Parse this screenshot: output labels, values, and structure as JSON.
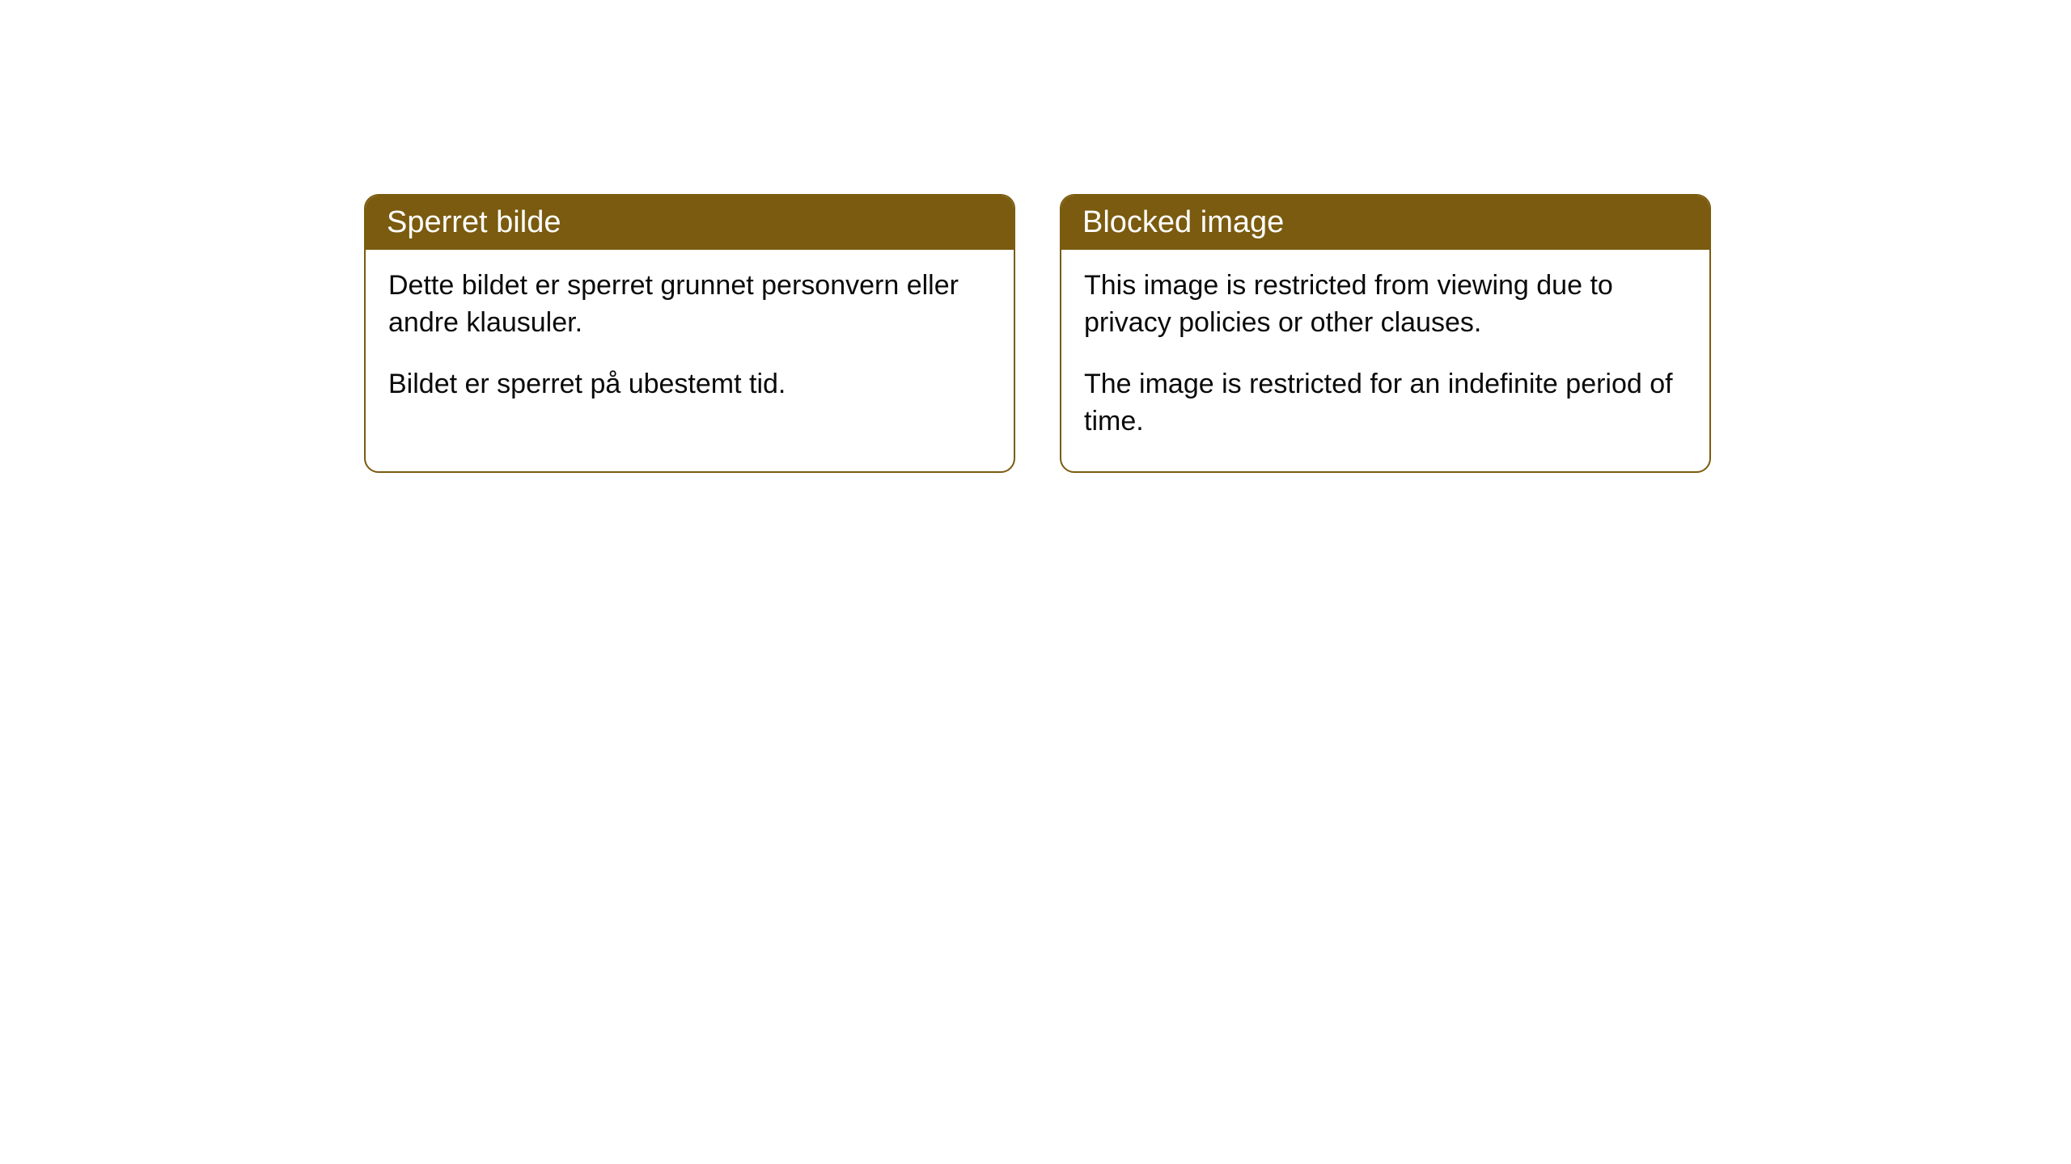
{
  "cards": [
    {
      "title": "Sperret bilde",
      "paragraph1": "Dette bildet er sperret grunnet personvern eller andre klausuler.",
      "paragraph2": "Bildet er sperret på ubestemt tid."
    },
    {
      "title": "Blocked image",
      "paragraph1": "This image is restricted from viewing due to privacy policies or other clauses.",
      "paragraph2": "The image is restricted for an indefinite period of time."
    }
  ],
  "styling": {
    "header_background": "#7a5b0f",
    "header_text_color": "#ffffff",
    "border_color": "#7a5b0f",
    "body_background": "#ffffff",
    "body_text_color": "#0a0a0a",
    "border_radius": 18,
    "title_fontsize": 38,
    "body_fontsize": 34
  }
}
